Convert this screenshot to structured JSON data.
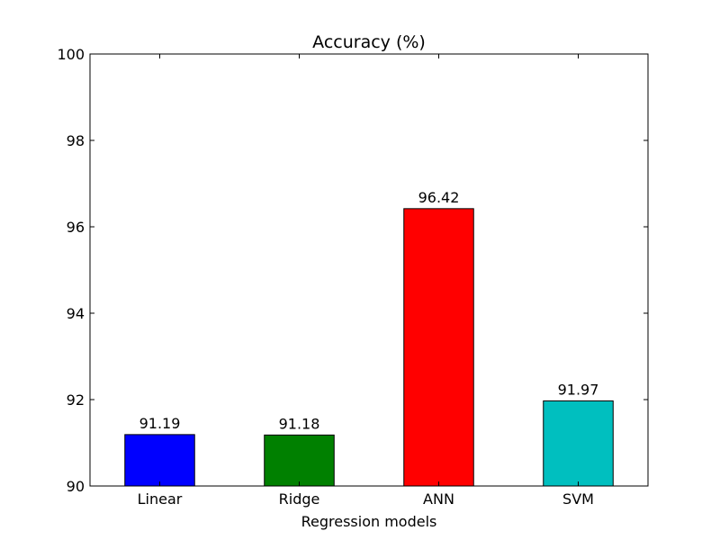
{
  "chart_data": {
    "type": "bar",
    "title": "Accuracy (%)",
    "xlabel": "Regression models",
    "ylabel": "",
    "ylim": [
      90,
      100
    ],
    "yticks": [
      90,
      92,
      94,
      96,
      98,
      100
    ],
    "categories": [
      "Linear",
      "Ridge",
      "ANN",
      "SVM"
    ],
    "values": [
      91.19,
      91.18,
      96.42,
      91.97
    ],
    "data_labels": [
      "91.19",
      "91.18",
      "96.42",
      "91.97"
    ],
    "colors": [
      "#0000ff",
      "#008000",
      "#ff0000",
      "#00bfbf"
    ],
    "grid": false,
    "legend": "none"
  }
}
